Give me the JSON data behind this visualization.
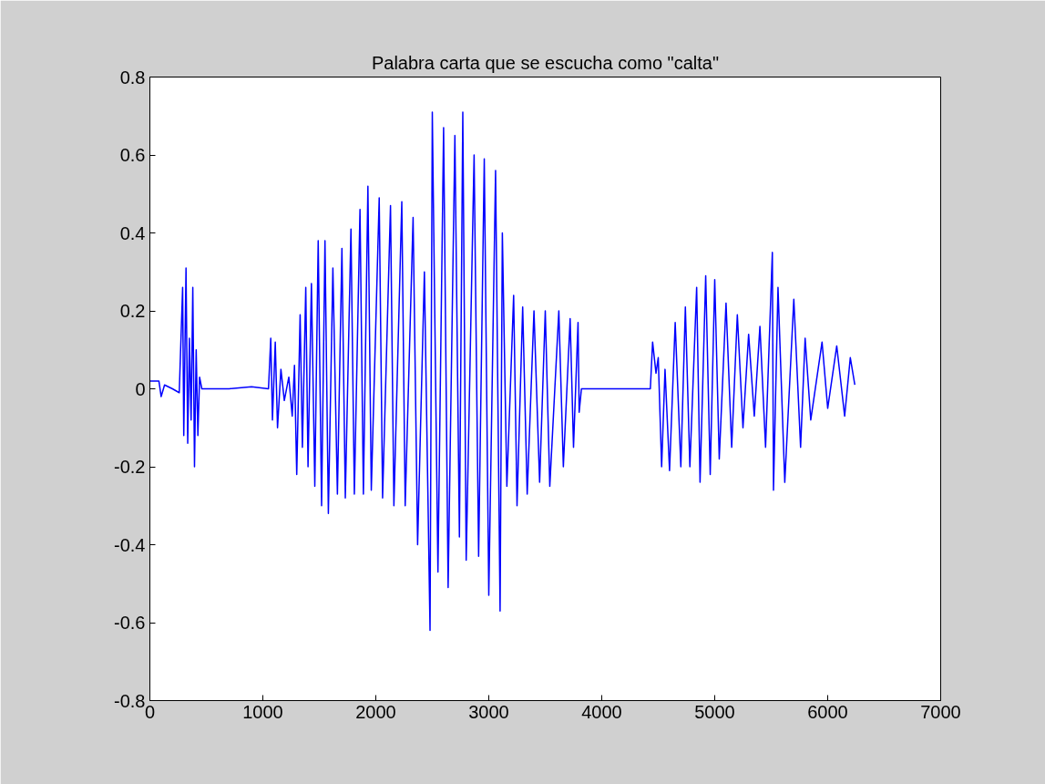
{
  "chart_data": {
    "type": "line",
    "title": "Palabra carta que se escucha como \"calta\"",
    "series": [
      {
        "color": "#0000ff",
        "x": [
          0,
          80,
          100,
          130,
          200,
          260,
          290,
          300,
          320,
          335,
          350,
          365,
          380,
          395,
          410,
          425,
          440,
          460,
          700,
          900,
          1050,
          1070,
          1085,
          1110,
          1130,
          1160,
          1190,
          1230,
          1260,
          1280,
          1300,
          1330,
          1350,
          1380,
          1400,
          1430,
          1460,
          1490,
          1520,
          1550,
          1580,
          1620,
          1660,
          1700,
          1730,
          1780,
          1810,
          1860,
          1890,
          1930,
          1960,
          2030,
          2060,
          2130,
          2160,
          2230,
          2260,
          2330,
          2370,
          2430,
          2480,
          2500,
          2550,
          2600,
          2640,
          2700,
          2740,
          2770,
          2800,
          2870,
          2910,
          2960,
          3000,
          3060,
          3100,
          3120,
          3160,
          3220,
          3250,
          3300,
          3340,
          3400,
          3450,
          3500,
          3540,
          3620,
          3660,
          3720,
          3750,
          3790,
          3800,
          3820,
          4100,
          4430,
          4450,
          4480,
          4500,
          4530,
          4560,
          4600,
          4650,
          4700,
          4740,
          4780,
          4840,
          4870,
          4920,
          4960,
          5000,
          5040,
          5100,
          5150,
          5200,
          5250,
          5300,
          5350,
          5400,
          5450,
          5510,
          5520,
          5560,
          5620,
          5700,
          5760,
          5800,
          5850,
          5950,
          6000,
          6080,
          6150,
          6200,
          6240
        ],
        "values": [
          0.02,
          0.02,
          -0.02,
          0.01,
          0.0,
          -0.01,
          0.26,
          -0.12,
          0.31,
          -0.14,
          0.13,
          -0.08,
          0.26,
          -0.2,
          0.1,
          -0.12,
          0.03,
          0.0,
          0.0,
          0.005,
          0.0,
          0.13,
          -0.08,
          0.12,
          -0.1,
          0.05,
          -0.03,
          0.03,
          -0.07,
          0.06,
          -0.22,
          0.19,
          -0.15,
          0.26,
          -0.2,
          0.27,
          -0.25,
          0.38,
          -0.3,
          0.38,
          -0.32,
          0.31,
          -0.27,
          0.36,
          -0.28,
          0.41,
          -0.27,
          0.46,
          -0.27,
          0.52,
          -0.26,
          0.49,
          -0.28,
          0.47,
          -0.3,
          0.48,
          -0.3,
          0.44,
          -0.4,
          0.3,
          -0.62,
          0.71,
          -0.47,
          0.67,
          -0.51,
          0.65,
          -0.38,
          0.71,
          -0.44,
          0.6,
          -0.43,
          0.59,
          -0.53,
          0.56,
          -0.57,
          0.4,
          -0.25,
          0.24,
          -0.3,
          0.21,
          -0.27,
          0.2,
          -0.24,
          0.2,
          -0.25,
          0.2,
          -0.2,
          0.18,
          -0.15,
          0.17,
          -0.06,
          0.0,
          0.0,
          0.0,
          0.12,
          0.04,
          0.08,
          -0.2,
          0.05,
          -0.21,
          0.17,
          -0.2,
          0.21,
          -0.2,
          0.26,
          -0.24,
          0.29,
          -0.22,
          0.28,
          -0.18,
          0.22,
          -0.15,
          0.19,
          -0.1,
          0.14,
          -0.07,
          0.16,
          -0.15,
          0.35,
          -0.26,
          0.26,
          -0.24,
          0.23,
          -0.15,
          0.13,
          -0.08,
          0.12,
          -0.05,
          0.11,
          -0.07,
          0.08,
          0.01
        ]
      }
    ],
    "xlim": [
      0,
      7000
    ],
    "xticks": [
      0,
      1000,
      2000,
      3000,
      4000,
      5000,
      6000,
      7000
    ],
    "ylim": [
      -0.8,
      0.8
    ],
    "yticks": [
      -0.8,
      -0.6,
      -0.4,
      -0.2,
      0,
      0.2,
      0.4,
      0.6,
      0.8
    ],
    "grid": false
  }
}
